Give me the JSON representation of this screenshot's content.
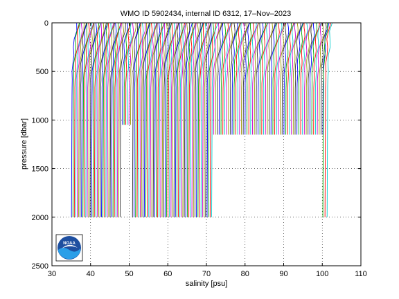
{
  "chart_data": {
    "type": "line",
    "title": "WMO ID 5902434, internal ID 6312, 17–Nov–2023",
    "xlabel": "salinity [psu]",
    "ylabel": "pressure [dbar]",
    "xlim": [
      30,
      110
    ],
    "ylim": [
      2500,
      0
    ],
    "y_reversed": true,
    "grid": true,
    "grid_style": "dotted",
    "x_ticks": [
      "30",
      "40",
      "50",
      "60",
      "70",
      "80",
      "90",
      "100",
      "110"
    ],
    "x_tick_values": [
      30,
      40,
      50,
      60,
      70,
      80,
      90,
      100,
      110
    ],
    "y_ticks": [
      "0",
      "500",
      "1000",
      "1500",
      "2000",
      "2500"
    ],
    "y_tick_values": [
      0,
      500,
      1000,
      1500,
      2000,
      2500
    ],
    "profile_offset_psu": 0.37,
    "series_colors": [
      "#0000ff",
      "#00aa00",
      "#ff0000",
      "#00cccc",
      "#cc00cc",
      "#999900",
      "#333333"
    ],
    "profile_groups": [
      {
        "start_salinity": 35.2,
        "end_salinity": 47.8,
        "count": 35,
        "max_pressure": 2000,
        "surface_tilt_psu": 1.2
      },
      {
        "start_salinity": 48.3,
        "end_salinity": 50.4,
        "count": 6,
        "max_pressure": 1050,
        "surface_tilt_psu": 1.2
      },
      {
        "start_salinity": 51.0,
        "end_salinity": 53.0,
        "count": 6,
        "max_pressure": 2000,
        "surface_tilt_psu": 1.1
      },
      {
        "start_salinity": 53.3,
        "end_salinity": 64.8,
        "count": 31,
        "max_pressure": 2000,
        "surface_tilt_psu": 1.2
      },
      {
        "start_salinity": 65.2,
        "end_salinity": 71.5,
        "count": 17,
        "max_pressure": 2000,
        "surface_tilt_psu": 1.2
      },
      {
        "start_salinity": 71.9,
        "end_salinity": 100.2,
        "count": 60,
        "max_pressure": 1150,
        "surface_tilt_psu": 1.2
      },
      {
        "start_salinity": 100.3,
        "end_salinity": 101.4,
        "count": 3,
        "max_pressure": 2000,
        "surface_tilt_psu": 1.0
      }
    ],
    "logo": {
      "name": "noaa-logo",
      "text": "NOAA"
    }
  }
}
